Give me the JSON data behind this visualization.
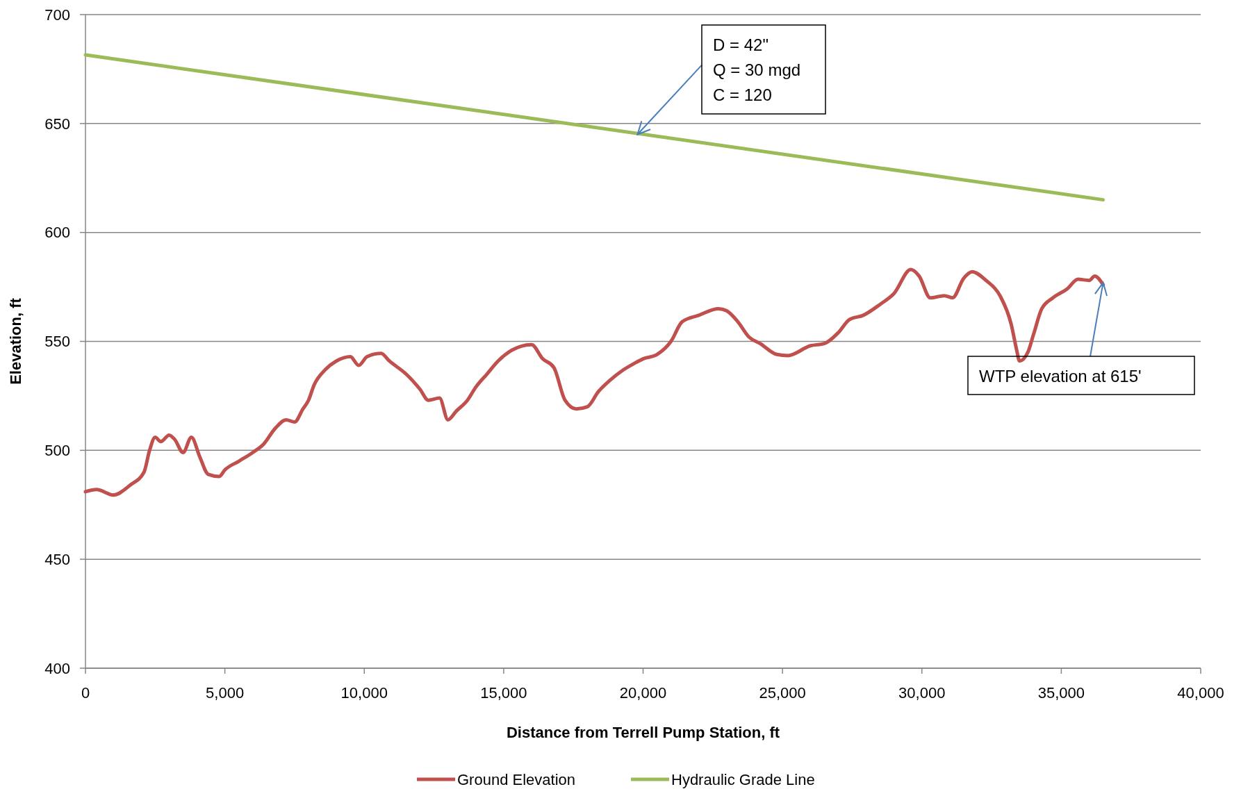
{
  "chart_data": {
    "type": "line",
    "xlabel": "Distance from Terrell Pump Station, ft",
    "ylabel": "Elevation, ft",
    "xlim": [
      0,
      40000
    ],
    "xticks": [
      {
        "value": 0,
        "label": "0"
      },
      {
        "value": 5000,
        "label": "5,000"
      },
      {
        "value": 10000,
        "label": "10,000"
      },
      {
        "value": 15000,
        "label": "15,000"
      },
      {
        "value": 20000,
        "label": "20,000"
      },
      {
        "value": 25000,
        "label": "25,000"
      },
      {
        "value": 30000,
        "label": "30,000"
      },
      {
        "value": 35000,
        "label": "35,000"
      },
      {
        "value": 40000,
        "label": "40,000"
      }
    ],
    "ylim": [
      400,
      700
    ],
    "yticks": [
      400,
      450,
      500,
      550,
      600,
      650,
      700
    ],
    "grid": "y",
    "legend": "bottom",
    "marker": "none",
    "line_style": "solid",
    "series": [
      {
        "name": "Ground Elevation",
        "color": "#c0504d",
        "x": [
          0,
          400,
          1000,
          1600,
          2100,
          2300,
          2500,
          2700,
          3000,
          3200,
          3500,
          3800,
          4100,
          4400,
          4800,
          5000,
          5500,
          6000,
          6400,
          6800,
          7200,
          7500,
          7800,
          8000,
          8200,
          8600,
          9000,
          9500,
          9800,
          10100,
          10600,
          10900,
          11500,
          12000,
          12300,
          12700,
          13000,
          13300,
          13700,
          14000,
          14400,
          14800,
          15300,
          16000,
          16400,
          16800,
          17200,
          17600,
          18000,
          18400,
          18800,
          19300,
          19700,
          20000,
          20500,
          21000,
          21400,
          22000,
          22700,
          23000,
          23400,
          23800,
          24200,
          24800,
          25200,
          26000,
          26500,
          27000,
          27400,
          27900,
          28500,
          29000,
          29600,
          29900,
          30300,
          30800,
          31100,
          31500,
          31800,
          32300,
          32800,
          33200,
          33400,
          33500,
          33800,
          34000,
          34300,
          34700,
          35200,
          35600,
          36000,
          36200,
          36500
        ],
        "values": [
          481,
          482,
          479.5,
          484,
          490,
          500,
          506,
          504,
          507,
          505,
          499,
          506,
          497,
          489,
          488,
          491,
          495,
          499,
          503,
          510,
          514,
          513,
          519,
          523,
          530,
          537,
          541,
          543,
          539,
          543,
          544.5,
          541,
          535,
          528,
          523,
          524,
          514,
          518,
          523,
          529,
          535,
          541,
          546,
          548.5,
          542,
          538,
          523,
          519,
          520,
          527,
          532,
          537,
          540,
          542,
          544,
          550,
          559,
          562,
          565,
          564,
          559,
          552,
          549,
          544,
          543.5,
          548,
          549,
          554,
          560,
          562,
          567,
          572,
          583,
          580,
          570,
          571,
          570,
          579,
          582,
          578,
          571,
          558,
          546,
          541,
          545,
          553,
          565,
          570,
          574,
          578.5,
          578,
          580,
          576
        ]
      },
      {
        "name": "Hydraulic Grade Line",
        "color": "#9bbb59",
        "x": [
          0,
          36500
        ],
        "values": [
          681.5,
          615
        ]
      }
    ],
    "annotations": [
      {
        "text": "D = 42\"\nQ = 30 mgd\nC = 120",
        "x": 19800,
        "y": 645
      },
      {
        "text": "WTP elevation at 615'",
        "x": 36500,
        "y": 577
      }
    ]
  }
}
